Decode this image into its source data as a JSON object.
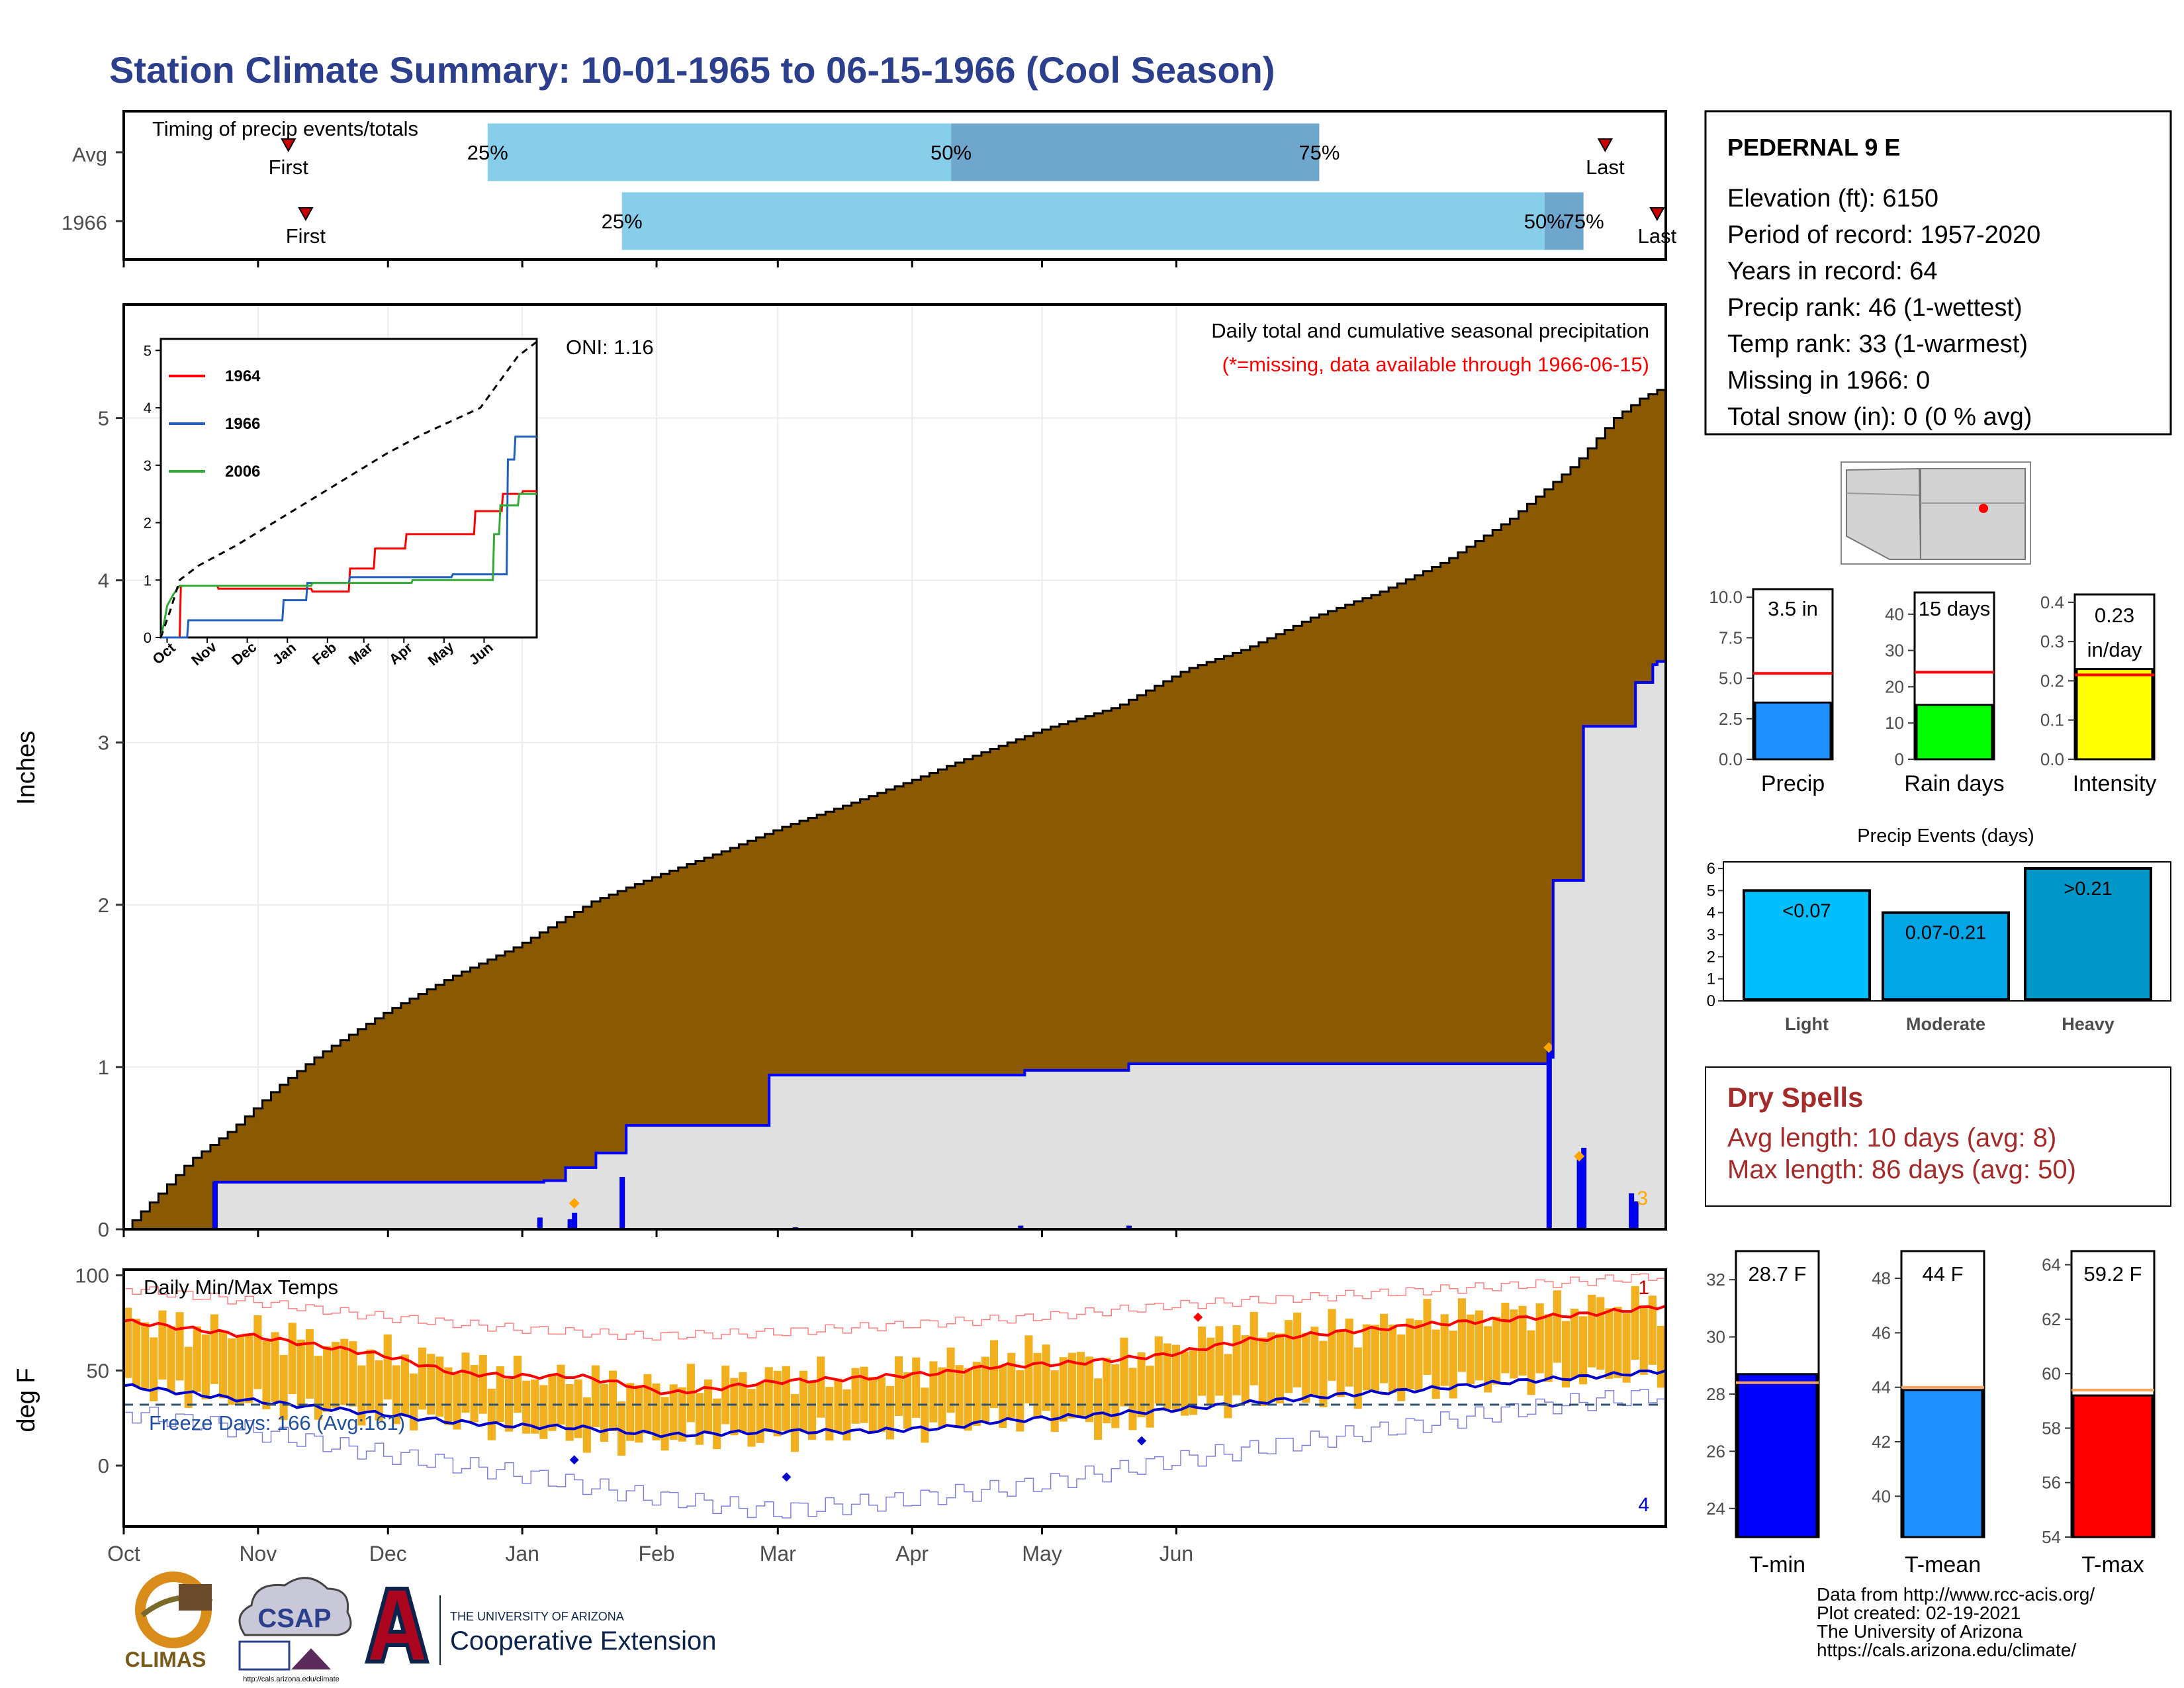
{
  "page_title": "Station Climate Summary: 10-01-1965 to 06-15-1966 (Cool Season)",
  "colors": {
    "title": "#2b3f8c",
    "cum_fill": "#8b5a00",
    "avg_fill": "#e0e0e0",
    "year_line": "#0000ff",
    "quartile_light": "#87ceeb",
    "quartile_dark": "#6fa6cd",
    "temp_bar": "#f2b01e",
    "tmax_line": "#ff0000",
    "tmin_line": "#0000cc",
    "dry_spells": "#a52a2a"
  },
  "timing_panel": {
    "title": "Timing of precip events/totals",
    "rows": [
      {
        "label": "Avg",
        "first_label": "First",
        "last_label": "Last",
        "q25": "25%",
        "q50": "50%",
        "q75": "75%",
        "first_day": 38,
        "q25_day": 84,
        "q50_day": 191,
        "q75_day": 276,
        "last_day": 342
      },
      {
        "label": "1966",
        "first_label": "First",
        "last_label": "Last",
        "q25": "25%",
        "q50": "50%",
        "q75": "75%",
        "first_day": 42,
        "q25_day": 115,
        "q50_day": 328,
        "q75_day": 337,
        "last_day": 354
      }
    ]
  },
  "precip_panel": {
    "ylabel": "Inches",
    "oni": "ONI: 1.16",
    "caption": "Daily total and cumulative seasonal precipitation",
    "missing_note": "(*=missing, data available through 1966-06-15)",
    "y_ticks": [
      "0",
      "1",
      "2",
      "3",
      "4",
      "5"
    ],
    "month_ticks": [
      "Oct",
      "Nov",
      "Dec",
      "Jan",
      "Feb",
      "Mar",
      "Apr",
      "May",
      "Jun"
    ],
    "corner_count": "3"
  },
  "inset": {
    "y_ticks": [
      "0",
      "1",
      "2",
      "3",
      "4",
      "5"
    ],
    "x_ticks": [
      "Oct",
      "Nov",
      "Dec",
      "Jan",
      "Feb",
      "Mar",
      "Apr",
      "May",
      "Jun"
    ],
    "legend": [
      {
        "name": "1964",
        "color": "#ff0000"
      },
      {
        "name": "1966",
        "color": "#1f5fbf"
      },
      {
        "name": "2006",
        "color": "#33aa33"
      }
    ]
  },
  "temp_panel": {
    "ylabel": "deg F",
    "title": "Daily Min/Max Temps",
    "freeze_label": "Freeze Days: 166 (Avg:161)",
    "y_ticks": [
      "0",
      "50",
      "100"
    ],
    "month_ticks": [
      "Oct",
      "Nov",
      "Dec",
      "Jan",
      "Feb",
      "Mar",
      "Apr",
      "May",
      "Jun"
    ],
    "top_count": "1",
    "bottom_count": "4"
  },
  "station": {
    "name": "PEDERNAL 9 E",
    "lines": [
      "Elevation (ft): 6150",
      "Period of record: 1957-2020",
      "Years in record: 64",
      "Precip rank: 46 (1-wettest)",
      "Temp rank: 33 (1-warmest)",
      "Missing in 1966: 0",
      "Total snow (in): 0 (0 % avg)"
    ]
  },
  "gauges_precip": [
    {
      "label": "Precip",
      "value_text": "3.5 in",
      "value_text2": "",
      "value": 3.5,
      "avg": 5.3,
      "max": 10.5,
      "ticks": [
        "0.0",
        "2.5",
        "5.0",
        "7.5",
        "10.0"
      ],
      "tick_vals": [
        0,
        2.5,
        5,
        7.5,
        10
      ],
      "color": "#1e90ff"
    },
    {
      "label": "Rain days",
      "value_text": "15 days",
      "value_text2": "",
      "value": 15,
      "avg": 24,
      "max": 46,
      "ticks": [
        "0",
        "10",
        "20",
        "30",
        "40"
      ],
      "tick_vals": [
        0,
        10,
        20,
        30,
        40
      ],
      "color": "#00ff00"
    },
    {
      "label": "Intensity",
      "value_text": "0.23",
      "value_text2": "in/day",
      "value": 0.23,
      "avg": 0.215,
      "max": 0.42,
      "ticks": [
        "0.0",
        "0.1",
        "0.2",
        "0.3",
        "0.4"
      ],
      "tick_vals": [
        0,
        0.1,
        0.2,
        0.3,
        0.4
      ],
      "color": "#ffff00"
    }
  ],
  "precip_events": {
    "title": "Precip Events (days)",
    "y_ticks": [
      "0",
      "1",
      "2",
      "3",
      "4",
      "5",
      "6"
    ],
    "bars": [
      {
        "category": "Light",
        "label": "<0.07",
        "value": 5,
        "color": "#00bfff"
      },
      {
        "category": "Moderate",
        "label": "0.07-0.21",
        "value": 4,
        "color": "#00a6e6"
      },
      {
        "category": "Heavy",
        "label": ">0.21",
        "value": 6,
        "color": "#0096c8"
      }
    ]
  },
  "dry_spells": {
    "title": "Dry Spells",
    "lines": [
      "Avg length: 10 days (avg: 8)",
      "Max length: 86 days (avg: 50)"
    ]
  },
  "gauges_temp": [
    {
      "label": "T-min",
      "value_text": "28.7 F",
      "value": 28.7,
      "avg": 28.4,
      "min": 23,
      "max": 33,
      "ticks": [
        "24",
        "26",
        "28",
        "30",
        "32"
      ],
      "tick_vals": [
        24,
        26,
        28,
        30,
        32
      ],
      "color": "#0000ff"
    },
    {
      "label": "T-mean",
      "value_text": "44 F",
      "value": 43.9,
      "avg": 44.0,
      "min": 38.5,
      "max": 49,
      "ticks": [
        "40",
        "42",
        "44",
        "46",
        "48"
      ],
      "tick_vals": [
        40,
        42,
        44,
        46,
        48
      ],
      "color": "#1e90ff"
    },
    {
      "label": "T-max",
      "value_text": "59.2 F",
      "value": 59.2,
      "avg": 59.4,
      "min": 54,
      "max": 64.5,
      "ticks": [
        "54",
        "56",
        "58",
        "60",
        "62",
        "64"
      ],
      "tick_vals": [
        54,
        56,
        58,
        60,
        62,
        64
      ],
      "color": "#ff0000"
    }
  ],
  "footer": {
    "lines": [
      "Data from http://www.rcc-acis.org/",
      "Plot created: 02-19-2021",
      "The University of Arizona",
      "https://cals.arizona.edu/climate/"
    ],
    "logos": {
      "climas": "CLIMAS",
      "csap": "CSAP",
      "csap_url": "http://cals.arizona.edu/climate",
      "ua_small": "THE UNIVERSITY OF ARIZONA",
      "ua_big": "Cooperative Extension"
    }
  },
  "chart_data": [
    {
      "type": "area",
      "title": "Daily total and cumulative seasonal precipitation",
      "ylabel": "Inches",
      "x_unit": "day of season (0 = Oct 1)",
      "ylim": [
        0,
        5.7
      ],
      "series": [
        {
          "name": "Average cumulative",
          "x": [
            0,
            8,
            15,
            25,
            35,
            45,
            55,
            61,
            75,
            91,
            108,
            122,
            139,
            152,
            167,
            182,
            197,
            213,
            229,
            245,
            259,
            274,
            290,
            305,
            320,
            335,
            344,
            350,
            356
          ],
          "values": [
            0,
            0.22,
            0.42,
            0.62,
            0.87,
            1.08,
            1.25,
            1.35,
            1.55,
            1.75,
            2.02,
            2.17,
            2.34,
            2.48,
            2.62,
            2.77,
            2.93,
            3.09,
            3.22,
            3.45,
            3.58,
            3.77,
            3.93,
            4.12,
            4.38,
            4.72,
            5.0,
            5.12,
            5.2
          ]
        },
        {
          "name": "1966 cumulative",
          "x": [
            0,
            21,
            97,
            102,
            109,
            116,
            149,
            155,
            208,
            232,
            329,
            330,
            336,
            337,
            348,
            349,
            353,
            354,
            356
          ],
          "values": [
            0,
            0.29,
            0.3,
            0.38,
            0.47,
            0.64,
            0.95,
            0.95,
            0.98,
            1.02,
            1.06,
            2.15,
            2.15,
            3.1,
            3.1,
            3.37,
            3.48,
            3.5,
            3.5
          ]
        },
        {
          "name": "1966 daily",
          "x": [
            21,
            96,
            103,
            104,
            115,
            155,
            207,
            232,
            329,
            336,
            337,
            348,
            349
          ],
          "values": [
            0.29,
            0.07,
            0.06,
            0.1,
            0.32,
            0.01,
            0.02,
            0.02,
            1.1,
            0.44,
            0.5,
            0.22,
            0.17
          ]
        }
      ]
    },
    {
      "type": "line",
      "title": "",
      "x_unit": "day of season (0 = Oct 1)",
      "ylim": [
        0,
        5.2
      ],
      "series": [
        {
          "name": "1964",
          "x": [
            0,
            15,
            16,
            45,
            46,
            120,
            121,
            150,
            151,
            170,
            171,
            195,
            196,
            250,
            251,
            272,
            273,
            288,
            289,
            300
          ],
          "values": [
            0,
            0,
            0.9,
            0.9,
            0.85,
            0.85,
            0.8,
            0.8,
            1.2,
            1.2,
            1.55,
            1.55,
            1.8,
            1.8,
            2.2,
            2.2,
            2.5,
            2.5,
            2.55,
            2.55
          ]
        },
        {
          "name": "1966",
          "x": [
            0,
            21,
            22,
            97,
            98,
            116,
            117,
            150,
            151,
            232,
            233,
            276,
            277,
            282,
            283,
            300
          ],
          "values": [
            0,
            0,
            0.3,
            0.3,
            0.65,
            0.65,
            0.95,
            0.95,
            1.05,
            1.05,
            1.1,
            1.1,
            3.1,
            3.1,
            3.5,
            3.5
          ]
        },
        {
          "name": "2006",
          "x": [
            0,
            3,
            5,
            10,
            15,
            120,
            121,
            200,
            201,
            265,
            266,
            270,
            271,
            285,
            286,
            300
          ],
          "values": [
            0,
            0.3,
            0.55,
            0.75,
            0.9,
            0.9,
            0.95,
            0.95,
            1.0,
            1.0,
            1.8,
            1.8,
            2.3,
            2.3,
            2.5,
            2.5
          ]
        },
        {
          "name": "Average",
          "x": [
            0,
            8,
            15,
            30,
            60,
            90,
            120,
            150,
            180,
            210,
            240,
            255,
            265,
            275,
            285,
            300
          ],
          "values": [
            0,
            0.5,
            1.0,
            1.25,
            1.6,
            2.0,
            2.4,
            2.8,
            3.2,
            3.55,
            3.85,
            4.0,
            4.3,
            4.6,
            4.9,
            5.15
          ]
        }
      ]
    },
    {
      "type": "bar",
      "title": "Daily Min/Max Temps",
      "ylabel": "deg F",
      "x_unit": "day of season (0 = Oct 1)",
      "ylim": [
        -32,
        103
      ],
      "freeze_threshold": 32,
      "series": [
        {
          "name": "Avg Tmax",
          "x": [
            0,
            30,
            60,
            76,
            90,
            105,
            115,
            126,
            150,
            170,
            190,
            200,
            220,
            240,
            260,
            280,
            300,
            320,
            340,
            356
          ],
          "values": [
            76,
            68,
            58,
            49,
            47,
            47,
            43,
            38,
            44,
            46,
            49,
            52,
            54,
            58,
            66,
            70,
            74,
            77,
            80,
            84
          ]
        },
        {
          "name": "Avg Tmin",
          "x": [
            0,
            30,
            60,
            76,
            90,
            105,
            115,
            126,
            150,
            170,
            190,
            200,
            220,
            240,
            260,
            280,
            300,
            320,
            340,
            356
          ],
          "values": [
            42,
            34,
            27,
            23,
            21,
            20,
            18,
            16,
            18,
            18,
            20,
            23,
            26,
            29,
            33,
            37,
            40,
            44,
            47,
            50
          ]
        },
        {
          "name": "Record high",
          "x": [
            0,
            30,
            60,
            90,
            120,
            150,
            180,
            210,
            240,
            270,
            300,
            330,
            356
          ],
          "values": [
            93,
            86,
            78,
            72,
            68,
            70,
            74,
            78,
            84,
            88,
            92,
            96,
            100
          ]
        },
        {
          "name": "Record low",
          "x": [
            0,
            30,
            60,
            90,
            120,
            150,
            180,
            210,
            240,
            270,
            300,
            330,
            356
          ],
          "values": [
            28,
            18,
            6,
            -4,
            -16,
            -24,
            -18,
            -10,
            2,
            12,
            22,
            32,
            38
          ]
        },
        {
          "name": "Daily Tmax",
          "x": [
            0,
            15,
            30,
            45,
            60,
            75,
            90,
            105,
            120,
            135,
            150,
            165,
            180,
            195,
            210,
            225,
            240,
            255,
            270,
            285,
            300,
            315,
            330,
            345,
            356
          ],
          "values": [
            78,
            72,
            70,
            65,
            58,
            55,
            48,
            45,
            42,
            44,
            48,
            46,
            50,
            56,
            60,
            54,
            62,
            70,
            74,
            72,
            78,
            80,
            82,
            86,
            84
          ]
        },
        {
          "name": "Daily Tmin",
          "x": [
            0,
            15,
            30,
            45,
            60,
            75,
            90,
            105,
            120,
            135,
            150,
            165,
            180,
            195,
            210,
            225,
            240,
            255,
            270,
            285,
            300,
            315,
            330,
            345,
            356
          ],
          "values": [
            42,
            38,
            33,
            30,
            26,
            24,
            20,
            14,
            12,
            16,
            14,
            18,
            20,
            22,
            26,
            20,
            28,
            34,
            36,
            38,
            40,
            44,
            46,
            48,
            50
          ]
        }
      ]
    }
  ]
}
